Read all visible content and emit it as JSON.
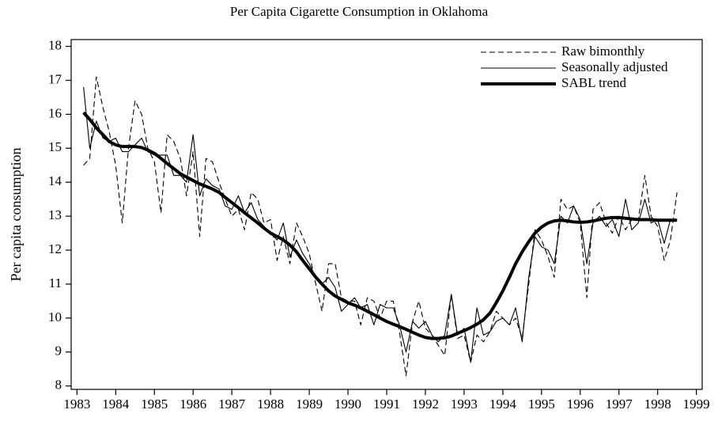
{
  "chart_data": {
    "type": "line",
    "title": "Per Capita Cigarette Consumption in Oklahoma",
    "y_label": "Per capita consumption",
    "x": [
      1983.17,
      1983.33,
      1983.5,
      1983.67,
      1983.83,
      1984,
      1984.17,
      1984.33,
      1984.5,
      1984.67,
      1984.83,
      1985,
      1985.17,
      1985.33,
      1985.5,
      1985.67,
      1985.83,
      1986,
      1986.17,
      1986.33,
      1986.5,
      1986.67,
      1986.83,
      1987,
      1987.17,
      1987.33,
      1987.5,
      1987.67,
      1987.83,
      1988,
      1988.17,
      1988.33,
      1988.5,
      1988.67,
      1988.83,
      1989,
      1989.17,
      1989.33,
      1989.5,
      1989.67,
      1989.83,
      1990,
      1990.17,
      1990.33,
      1990.5,
      1990.67,
      1990.83,
      1991,
      1991.17,
      1991.33,
      1991.5,
      1991.67,
      1991.83,
      1992,
      1992.17,
      1992.33,
      1992.5,
      1992.67,
      1992.83,
      1993,
      1993.17,
      1993.33,
      1993.5,
      1993.67,
      1993.83,
      1994,
      1994.17,
      1994.33,
      1994.5,
      1994.67,
      1994.83,
      1995,
      1995.17,
      1995.33,
      1995.5,
      1995.67,
      1995.83,
      1996,
      1996.17,
      1996.33,
      1996.5,
      1996.67,
      1996.83,
      1997,
      1997.17,
      1997.33,
      1997.5,
      1997.67,
      1997.83,
      1998,
      1998.17,
      1998.33,
      1998.5
    ],
    "series": [
      {
        "name": "Raw bimonthly",
        "color": "#000000",
        "line_style": "dashed",
        "values": [
          14.5,
          14.7,
          17.1,
          16.2,
          15.5,
          14.5,
          12.8,
          15.0,
          16.4,
          16.0,
          15.0,
          14.6,
          13.1,
          15.4,
          15.2,
          14.7,
          13.6,
          14.9,
          12.4,
          14.7,
          14.6,
          14.0,
          13.5,
          13.0,
          13.2,
          12.6,
          13.7,
          13.5,
          12.8,
          12.9,
          11.7,
          12.4,
          11.6,
          12.8,
          12.4,
          11.9,
          11.0,
          10.2,
          11.6,
          11.6,
          10.6,
          10.5,
          10.5,
          9.8,
          10.6,
          10.5,
          10.0,
          10.5,
          10.5,
          9.6,
          8.3,
          9.9,
          10.5,
          9.7,
          9.5,
          9.2,
          8.9,
          10.7,
          9.4,
          9.5,
          8.7,
          9.5,
          9.3,
          9.6,
          10.2,
          10.0,
          9.8,
          10.0,
          9.4,
          11.0,
          12.6,
          12.3,
          11.8,
          11.2,
          13.5,
          13.2,
          13.3,
          12.8,
          10.6,
          13.2,
          13.4,
          12.8,
          12.5,
          13.0,
          12.6,
          12.9,
          12.9,
          14.2,
          13.0,
          12.7,
          11.7,
          12.3,
          13.7
        ]
      },
      {
        "name": "Seasonally adjusted",
        "color": "#000000",
        "line_style": "solid",
        "values": [
          16.8,
          15.0,
          15.8,
          15.3,
          15.2,
          15.3,
          14.9,
          14.9,
          15.1,
          15.3,
          14.9,
          14.8,
          14.8,
          14.8,
          14.2,
          14.2,
          14.0,
          15.4,
          13.6,
          14.1,
          13.9,
          13.8,
          13.3,
          13.2,
          13.6,
          13.1,
          13.4,
          12.9,
          12.7,
          12.5,
          12.3,
          12.8,
          11.8,
          12.3,
          11.9,
          11.6,
          11.2,
          11.0,
          11.2,
          10.9,
          10.2,
          10.4,
          10.6,
          10.3,
          10.4,
          9.8,
          10.4,
          10.3,
          10.3,
          9.8,
          9.0,
          9.9,
          9.7,
          9.9,
          9.5,
          9.3,
          9.5,
          10.7,
          9.5,
          9.7,
          8.7,
          10.3,
          9.5,
          9.6,
          9.9,
          10.0,
          9.8,
          10.3,
          9.3,
          11.2,
          12.4,
          12.1,
          12.0,
          11.6,
          13.0,
          12.8,
          13.3,
          12.9,
          11.6,
          12.8,
          13.0,
          12.7,
          12.9,
          12.4,
          13.5,
          12.6,
          12.8,
          13.5,
          12.8,
          12.9,
          12.2,
          12.9,
          12.9
        ]
      },
      {
        "name": "SABL trend",
        "color": "#000000",
        "line_style": "bold",
        "values": [
          16.05,
          15.85,
          15.6,
          15.4,
          15.2,
          15.1,
          15.05,
          15.05,
          15.05,
          15.02,
          14.95,
          14.85,
          14.7,
          14.55,
          14.4,
          14.25,
          14.15,
          14.05,
          13.95,
          13.88,
          13.8,
          13.7,
          13.55,
          13.4,
          13.25,
          13.1,
          12.95,
          12.8,
          12.65,
          12.5,
          12.4,
          12.3,
          12.15,
          11.95,
          11.7,
          11.45,
          11.2,
          11.0,
          10.8,
          10.65,
          10.55,
          10.45,
          10.38,
          10.3,
          10.2,
          10.1,
          10.0,
          9.9,
          9.82,
          9.75,
          9.67,
          9.58,
          9.5,
          9.43,
          9.4,
          9.4,
          9.42,
          9.47,
          9.55,
          9.63,
          9.72,
          9.82,
          9.95,
          10.15,
          10.45,
          10.8,
          11.2,
          11.6,
          11.95,
          12.25,
          12.5,
          12.68,
          12.8,
          12.86,
          12.88,
          12.86,
          12.83,
          12.82,
          12.83,
          12.86,
          12.9,
          12.94,
          12.96,
          12.96,
          12.94,
          12.92,
          12.9,
          12.9,
          12.9,
          12.88,
          12.88,
          12.88,
          12.88
        ]
      }
    ],
    "xlim": [
      1982.85,
      1999.15
    ],
    "xticks": [
      1983,
      1984,
      1985,
      1986,
      1987,
      1988,
      1989,
      1990,
      1991,
      1992,
      1993,
      1994,
      1995,
      1996,
      1997,
      1998,
      1999
    ],
    "ylim": [
      7.9,
      18.2
    ],
    "yticks": [
      8,
      9,
      10,
      11,
      12,
      13,
      14,
      15,
      16,
      17,
      18
    ],
    "grid": false,
    "legend": "top-right"
  }
}
